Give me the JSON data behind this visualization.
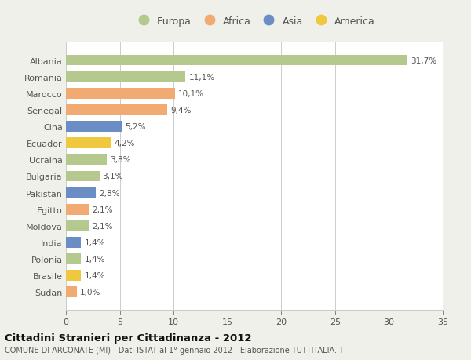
{
  "countries": [
    "Albania",
    "Romania",
    "Marocco",
    "Senegal",
    "Cina",
    "Ecuador",
    "Ucraina",
    "Bulgaria",
    "Pakistan",
    "Egitto",
    "Moldova",
    "India",
    "Polonia",
    "Brasile",
    "Sudan"
  ],
  "values": [
    31.7,
    11.1,
    10.1,
    9.4,
    5.2,
    4.2,
    3.8,
    3.1,
    2.8,
    2.1,
    2.1,
    1.4,
    1.4,
    1.4,
    1.0
  ],
  "labels": [
    "31,7%",
    "11,1%",
    "10,1%",
    "9,4%",
    "5,2%",
    "4,2%",
    "3,8%",
    "3,1%",
    "2,8%",
    "2,1%",
    "2,1%",
    "1,4%",
    "1,4%",
    "1,4%",
    "1,0%"
  ],
  "colors": [
    "#b5c98e",
    "#b5c98e",
    "#f0aa72",
    "#f0aa72",
    "#6a8ec4",
    "#f0c840",
    "#b5c98e",
    "#b5c98e",
    "#6a8ec4",
    "#f0aa72",
    "#b5c98e",
    "#6a8ec4",
    "#b5c98e",
    "#f0c840",
    "#f0aa72"
  ],
  "legend_labels": [
    "Europa",
    "Africa",
    "Asia",
    "America"
  ],
  "legend_colors": [
    "#b5c98e",
    "#f0aa72",
    "#6a8ec4",
    "#f0c840"
  ],
  "title": "Cittadini Stranieri per Cittadinanza - 2012",
  "subtitle": "COMUNE DI ARCONATE (MI) - Dati ISTAT al 1° gennaio 2012 - Elaborazione TUTTITALIA.IT",
  "xlim": [
    0,
    35
  ],
  "xticks": [
    0,
    5,
    10,
    15,
    20,
    25,
    30,
    35
  ],
  "background_color": "#f0f0eb",
  "bar_background": "#ffffff",
  "grid_color": "#cccccc",
  "text_color": "#555555",
  "title_color": "#111111",
  "subtitle_color": "#555555"
}
